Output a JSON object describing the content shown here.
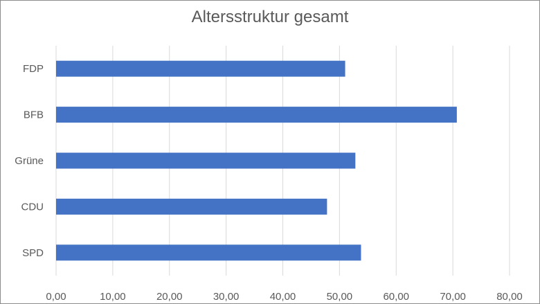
{
  "chart_data": {
    "type": "bar",
    "orientation": "horizontal",
    "title": "Altersstruktur gesamt",
    "categories": [
      "FDP",
      "BFB",
      "Grüne",
      "CDU",
      "SPD"
    ],
    "values": [
      51.0,
      70.7,
      52.8,
      47.8,
      53.8
    ],
    "xlim": [
      0,
      80
    ],
    "x_ticks": [
      0,
      10,
      20,
      30,
      40,
      50,
      60,
      70,
      80
    ],
    "x_tick_labels": [
      "0,00",
      "10,00",
      "20,00",
      "30,00",
      "40,00",
      "50,00",
      "60,00",
      "70,00",
      "80,00"
    ],
    "xlabel": "",
    "ylabel": "",
    "grid": "vertical",
    "legend": "none",
    "bar_color": "#4472c4",
    "grid_color": "#d9d9d9"
  }
}
